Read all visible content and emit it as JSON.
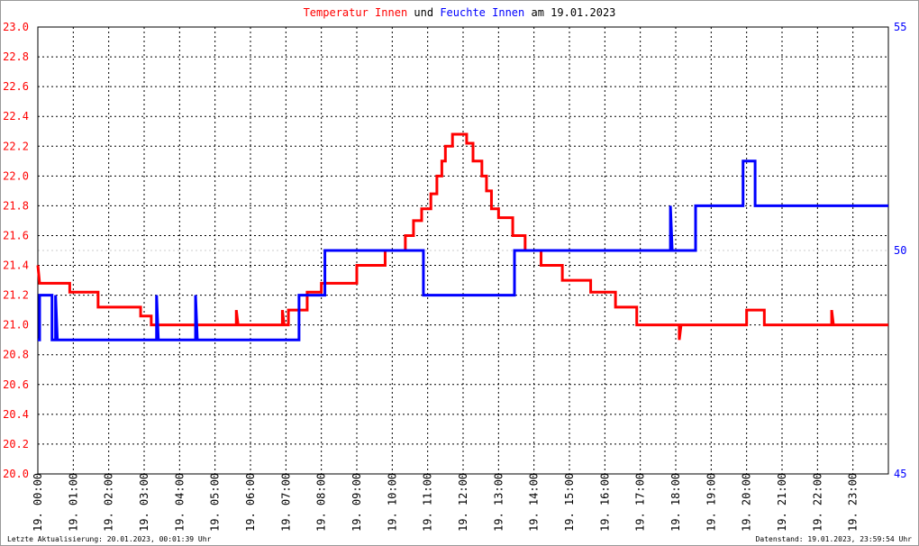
{
  "chart_data": {
    "type": "line",
    "title_connector": "und",
    "title_date": "am 19.01.2023",
    "footer_left": "Letzte Aktualisierung: 20.01.2023, 00:01:39 Uhr",
    "footer_right": "Datenstand: 19.01.2023, 23:59:54 Uhr",
    "xlim": [
      0,
      24
    ],
    "xticks": [
      {
        "value": 0,
        "label": "19. 00:00"
      },
      {
        "value": 1,
        "label": "19. 01:00"
      },
      {
        "value": 2,
        "label": "19. 02:00"
      },
      {
        "value": 3,
        "label": "19. 03:00"
      },
      {
        "value": 4,
        "label": "19. 04:00"
      },
      {
        "value": 5,
        "label": "19. 05:00"
      },
      {
        "value": 6,
        "label": "19. 06:00"
      },
      {
        "value": 7,
        "label": "19. 07:00"
      },
      {
        "value": 8,
        "label": "19. 08:00"
      },
      {
        "value": 9,
        "label": "19. 09:00"
      },
      {
        "value": 10,
        "label": "19. 10:00"
      },
      {
        "value": 11,
        "label": "19. 11:00"
      },
      {
        "value": 12,
        "label": "19. 12:00"
      },
      {
        "value": 13,
        "label": "19. 13:00"
      },
      {
        "value": 14,
        "label": "19. 14:00"
      },
      {
        "value": 15,
        "label": "19. 15:00"
      },
      {
        "value": 16,
        "label": "19. 16:00"
      },
      {
        "value": 17,
        "label": "19. 17:00"
      },
      {
        "value": 18,
        "label": "19. 18:00"
      },
      {
        "value": 19,
        "label": "19. 19:00"
      },
      {
        "value": 20,
        "label": "19. 20:00"
      },
      {
        "value": 21,
        "label": "19. 21:00"
      },
      {
        "value": 22,
        "label": "19. 22:00"
      },
      {
        "value": 23,
        "label": "19. 23:00"
      }
    ],
    "ylim": [
      20,
      23
    ],
    "yticks": [
      {
        "value": 20,
        "label": "20.0"
      },
      {
        "value": 20.2,
        "label": "20.2"
      },
      {
        "value": 20.4,
        "label": "20.4"
      },
      {
        "value": 20.6,
        "label": "20.6"
      },
      {
        "value": 20.8,
        "label": "20.8"
      },
      {
        "value": 21,
        "label": "21.0"
      },
      {
        "value": 21.2,
        "label": "21.2"
      },
      {
        "value": 21.4,
        "label": "21.4"
      },
      {
        "value": 21.6,
        "label": "21.6"
      },
      {
        "value": 21.8,
        "label": "21.8"
      },
      {
        "value": 22,
        "label": "22.0"
      },
      {
        "value": 22.2,
        "label": "22.2"
      },
      {
        "value": 22.4,
        "label": "22.4"
      },
      {
        "value": 22.6,
        "label": "22.6"
      },
      {
        "value": 22.8,
        "label": "22.8"
      },
      {
        "value": 23,
        "label": "23.0"
      }
    ],
    "y2lim": [
      45,
      55
    ],
    "y2ticks": [
      45,
      50,
      55
    ],
    "grid": true,
    "series": [
      {
        "name": "Temperatur Innen",
        "color": "#ff0000",
        "x": [
          0,
          0.05,
          0.9,
          0.9,
          1.7,
          1.7,
          2.9,
          2.9,
          3.2,
          3.2,
          5.6,
          5.6,
          5.65,
          6.9,
          6.9,
          6.95,
          7.07,
          7.07,
          7.6,
          7.6,
          8.0,
          8.0,
          9.0,
          9.0,
          9.8,
          9.8,
          10.37,
          10.37,
          10.6,
          10.6,
          10.83,
          10.83,
          11.09,
          11.09,
          11.26,
          11.26,
          11.4,
          11.4,
          11.5,
          11.5,
          11.7,
          11.7,
          12.1,
          12.1,
          12.28,
          12.28,
          12.53,
          12.53,
          12.66,
          12.66,
          12.8,
          12.8,
          13.0,
          13.0,
          13.4,
          13.4,
          13.75,
          13.75,
          14.2,
          14.2,
          14.8,
          14.8,
          15.6,
          15.6,
          16.3,
          16.3,
          16.9,
          16.9,
          18.1,
          18.1,
          18.15,
          20.0,
          20.0,
          20.5,
          20.5,
          22.4,
          22.4,
          22.45,
          24
        ],
        "values": [
          21.4,
          21.28,
          21.28,
          21.22,
          21.22,
          21.12,
          21.12,
          21.06,
          21.06,
          21.0,
          21.0,
          21.1,
          21.0,
          21.0,
          21.1,
          21.0,
          21.0,
          21.1,
          21.1,
          21.22,
          21.22,
          21.28,
          21.28,
          21.4,
          21.4,
          21.5,
          21.5,
          21.6,
          21.6,
          21.7,
          21.7,
          21.78,
          21.78,
          21.88,
          21.88,
          22.0,
          22.0,
          22.1,
          22.1,
          22.2,
          22.2,
          22.28,
          22.28,
          22.22,
          22.22,
          22.1,
          22.1,
          22.0,
          22.0,
          21.9,
          21.9,
          21.78,
          21.78,
          21.72,
          21.72,
          21.6,
          21.6,
          21.5,
          21.5,
          21.4,
          21.4,
          21.3,
          21.3,
          21.22,
          21.22,
          21.12,
          21.12,
          21.0,
          21.0,
          20.9,
          21.0,
          21.0,
          21.1,
          21.1,
          21.0,
          21.0,
          21.1,
          21.0,
          21.0
        ]
      },
      {
        "name": "Feuchte Innen",
        "color": "#0000ff",
        "axis": "y2",
        "x": [
          0,
          0.05,
          0.05,
          0.4,
          0.4,
          0.5,
          0.5,
          0.55,
          3.35,
          3.35,
          3.4,
          4.45,
          4.45,
          4.5,
          7.37,
          7.37,
          8.1,
          8.1,
          10.88,
          10.88,
          13.45,
          13.45,
          17.85,
          17.85,
          17.9,
          18.56,
          18.56,
          19.9,
          19.9,
          20.24,
          20.24,
          24
        ],
        "values": [
          48,
          48,
          49,
          49,
          48,
          48,
          49,
          48,
          48,
          49,
          48,
          48,
          49,
          48,
          48,
          49,
          49,
          50,
          50,
          49,
          49,
          50,
          50,
          51,
          50,
          50,
          51,
          51,
          52,
          52,
          51,
          51
        ]
      }
    ]
  }
}
